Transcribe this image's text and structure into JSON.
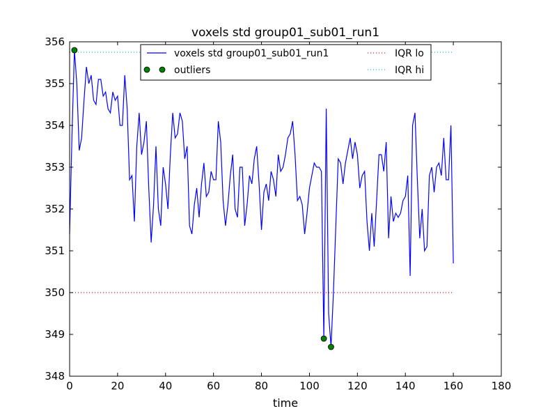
{
  "chart_data": {
    "type": "line",
    "title": "voxels std group01_sub01_run1",
    "xlabel": "time",
    "ylabel": "",
    "xlim": [
      0,
      180
    ],
    "ylim": [
      348,
      356
    ],
    "xticks": [
      "0",
      "20",
      "40",
      "60",
      "80",
      "100",
      "120",
      "140",
      "160",
      "180"
    ],
    "yticks": [
      "348",
      "349",
      "350",
      "351",
      "352",
      "353",
      "354",
      "355",
      "356"
    ],
    "grid": false,
    "legend_position": "top-center",
    "series": [
      {
        "name": "voxels std group01_sub01_run1",
        "color": "#0000ff",
        "style": "solid",
        "x": [
          0,
          1,
          2,
          3,
          4,
          5,
          6,
          7,
          8,
          9,
          10,
          11,
          12,
          13,
          14,
          15,
          16,
          17,
          18,
          19,
          20,
          21,
          22,
          23,
          24,
          25,
          26,
          27,
          28,
          29,
          30,
          31,
          32,
          33,
          34,
          35,
          36,
          37,
          38,
          39,
          40,
          41,
          42,
          43,
          44,
          45,
          46,
          47,
          48,
          49,
          50,
          51,
          52,
          53,
          54,
          55,
          56,
          57,
          58,
          59,
          60,
          61,
          62,
          63,
          64,
          65,
          66,
          67,
          68,
          69,
          70,
          71,
          72,
          73,
          74,
          75,
          76,
          77,
          78,
          79,
          80,
          81,
          82,
          83,
          84,
          85,
          86,
          87,
          88,
          89,
          90,
          91,
          92,
          93,
          94,
          95,
          96,
          97,
          98,
          99,
          100,
          101,
          102,
          103,
          104,
          105,
          106,
          107,
          108,
          109,
          110,
          111,
          112,
          113,
          114,
          115,
          116,
          117,
          118,
          119,
          120,
          121,
          122,
          123,
          124,
          125,
          126,
          127,
          128,
          129,
          130,
          131,
          132,
          133,
          134,
          135,
          136,
          137,
          138,
          139,
          140,
          141,
          142,
          143,
          144,
          145,
          146,
          147,
          148,
          149,
          150,
          151,
          152,
          153,
          154,
          155,
          156,
          157,
          158,
          159,
          160
        ],
        "y": [
          351.4,
          353.8,
          355.8,
          355.0,
          353.4,
          353.7,
          354.6,
          355.4,
          355.0,
          355.2,
          354.6,
          354.5,
          355.1,
          355.1,
          354.7,
          354.8,
          354.4,
          354.3,
          354.8,
          354.6,
          354.7,
          354.0,
          354.0,
          355.2,
          354.4,
          352.7,
          352.8,
          351.7,
          353.5,
          354.3,
          353.3,
          353.6,
          354.1,
          352.5,
          351.2,
          352.1,
          353.5,
          352.0,
          351.6,
          353.0,
          352.6,
          352.0,
          353.3,
          354.3,
          353.7,
          353.8,
          354.3,
          354.1,
          353.2,
          353.5,
          351.6,
          351.4,
          352.1,
          352.5,
          351.8,
          352.6,
          353.1,
          352.3,
          352.4,
          352.9,
          352.7,
          352.7,
          354.1,
          353.6,
          352.2,
          351.6,
          352.1,
          352.8,
          353.3,
          352.0,
          351.8,
          353.0,
          353.0,
          351.6,
          352.1,
          352.8,
          352.6,
          353.2,
          353.5,
          352.6,
          351.5,
          352.4,
          352.6,
          352.2,
          352.9,
          352.7,
          352.3,
          353.3,
          352.9,
          353.0,
          353.3,
          353.7,
          353.8,
          354.1,
          353.3,
          352.2,
          352.3,
          352.1,
          351.4,
          351.9,
          352.5,
          352.8,
          353.1,
          353.0,
          353.0,
          352.9,
          348.9,
          354.4,
          349.5,
          348.7,
          350.0,
          351.6,
          353.2,
          353.1,
          352.6,
          353.1,
          353.4,
          353.7,
          353.2,
          353.6,
          353.3,
          352.5,
          352.8,
          352.9,
          351.7,
          351.0,
          351.9,
          351.1,
          352.2,
          353.3,
          353.3,
          352.9,
          353.6,
          351.3,
          352.3,
          351.7,
          351.9,
          351.8,
          351.9,
          352.2,
          352.3,
          352.8,
          350.4,
          354.0,
          354.3,
          352.7,
          351.3,
          352.0,
          351.0,
          351.1,
          352.8,
          353.0,
          352.4,
          353.0,
          353.1,
          352.8,
          353.7,
          352.7,
          352.7,
          354.0,
          350.7
        ]
      },
      {
        "name": "outliers",
        "color": "#008000",
        "style": "markers",
        "x": [
          2,
          106,
          109
        ],
        "y": [
          355.8,
          348.9,
          348.7
        ]
      },
      {
        "name": "IQR lo",
        "color": "#ff0000",
        "style": "dotted",
        "x": [
          0,
          160
        ],
        "y": [
          350.0,
          350.0
        ]
      },
      {
        "name": "IQR hi",
        "color": "#00bfbf",
        "style": "dotted",
        "x": [
          0,
          160
        ],
        "y": [
          355.75,
          355.75
        ]
      }
    ]
  }
}
